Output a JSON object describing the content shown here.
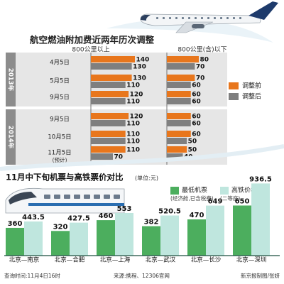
{
  "chart_data": [
    {
      "type": "bar",
      "title": "航空燃油附加费近两年历次调整",
      "groups": [
        {
          "label": "800公里以上",
          "ylim": [
            0,
            140
          ]
        },
        {
          "label": "800公里(含)以下",
          "ylim": [
            0,
            80
          ]
        }
      ],
      "year_labels": [
        "2013年",
        "2014年"
      ],
      "categories": [
        "4月5日",
        "5月5日",
        "9月5日",
        "9月5日",
        "10月5日",
        "11月5日"
      ],
      "category_note": "(预计)",
      "category_years": [
        "2013年",
        "2013年",
        "2013年",
        "2014年",
        "2014年",
        "2014年"
      ],
      "series": [
        {
          "name": "调整前",
          "color": "#e8761c",
          "group": "800公里以上",
          "values": [
            140,
            130,
            120,
            120,
            110,
            110
          ]
        },
        {
          "name": "调整后",
          "color": "#7f7f7f",
          "group": "800公里以上",
          "values": [
            130,
            110,
            110,
            110,
            110,
            70
          ]
        },
        {
          "name": "调整前",
          "color": "#e8761c",
          "group": "800公里(含)以下",
          "values": [
            80,
            70,
            60,
            60,
            60,
            50
          ]
        },
        {
          "name": "调整后",
          "color": "#7f7f7f",
          "group": "800公里(含)以下",
          "values": [
            70,
            60,
            60,
            60,
            50,
            40
          ]
        }
      ],
      "legend": [
        {
          "name": "调整前",
          "color": "#e8761c"
        },
        {
          "name": "调整后",
          "color": "#7f7f7f"
        }
      ],
      "legend_position": "right"
    },
    {
      "type": "bar",
      "title": "11月中下旬机票与高铁票价对比",
      "unit": "(单位:元)",
      "categories": [
        "北京—南京",
        "北京—合肥",
        "北京—上海",
        "北京—武汉",
        "北京—长沙",
        "北京—深圳"
      ],
      "series": [
        {
          "name": "最低机票",
          "note": "(经济舱,已含税费)",
          "color": "#4cae5e",
          "values": [
            360,
            320,
            460,
            382,
            470,
            650
          ]
        },
        {
          "name": "高铁价格",
          "note": "(二等座)",
          "color": "#bfe6de",
          "values": [
            443.5,
            427.5,
            553,
            520.5,
            649,
            936.5
          ]
        }
      ],
      "ylim": [
        0,
        940
      ],
      "legend_position": "top-right"
    }
  ],
  "footer": {
    "query_time": "查询时间:11月4日16时",
    "source": "来源:携程、12306官网",
    "credit": "新京报制图/张妍"
  },
  "colors": {
    "orange": "#e8761c",
    "gray": "#7f7f7f",
    "green": "#4cae5e",
    "light_green": "#bfe6de",
    "teal": "#14776a",
    "year_bg": "#8c8c8c",
    "panel_bg": "#e6e6e6",
    "navy": "#1d3a6b",
    "sky": "#eaf3f8"
  }
}
